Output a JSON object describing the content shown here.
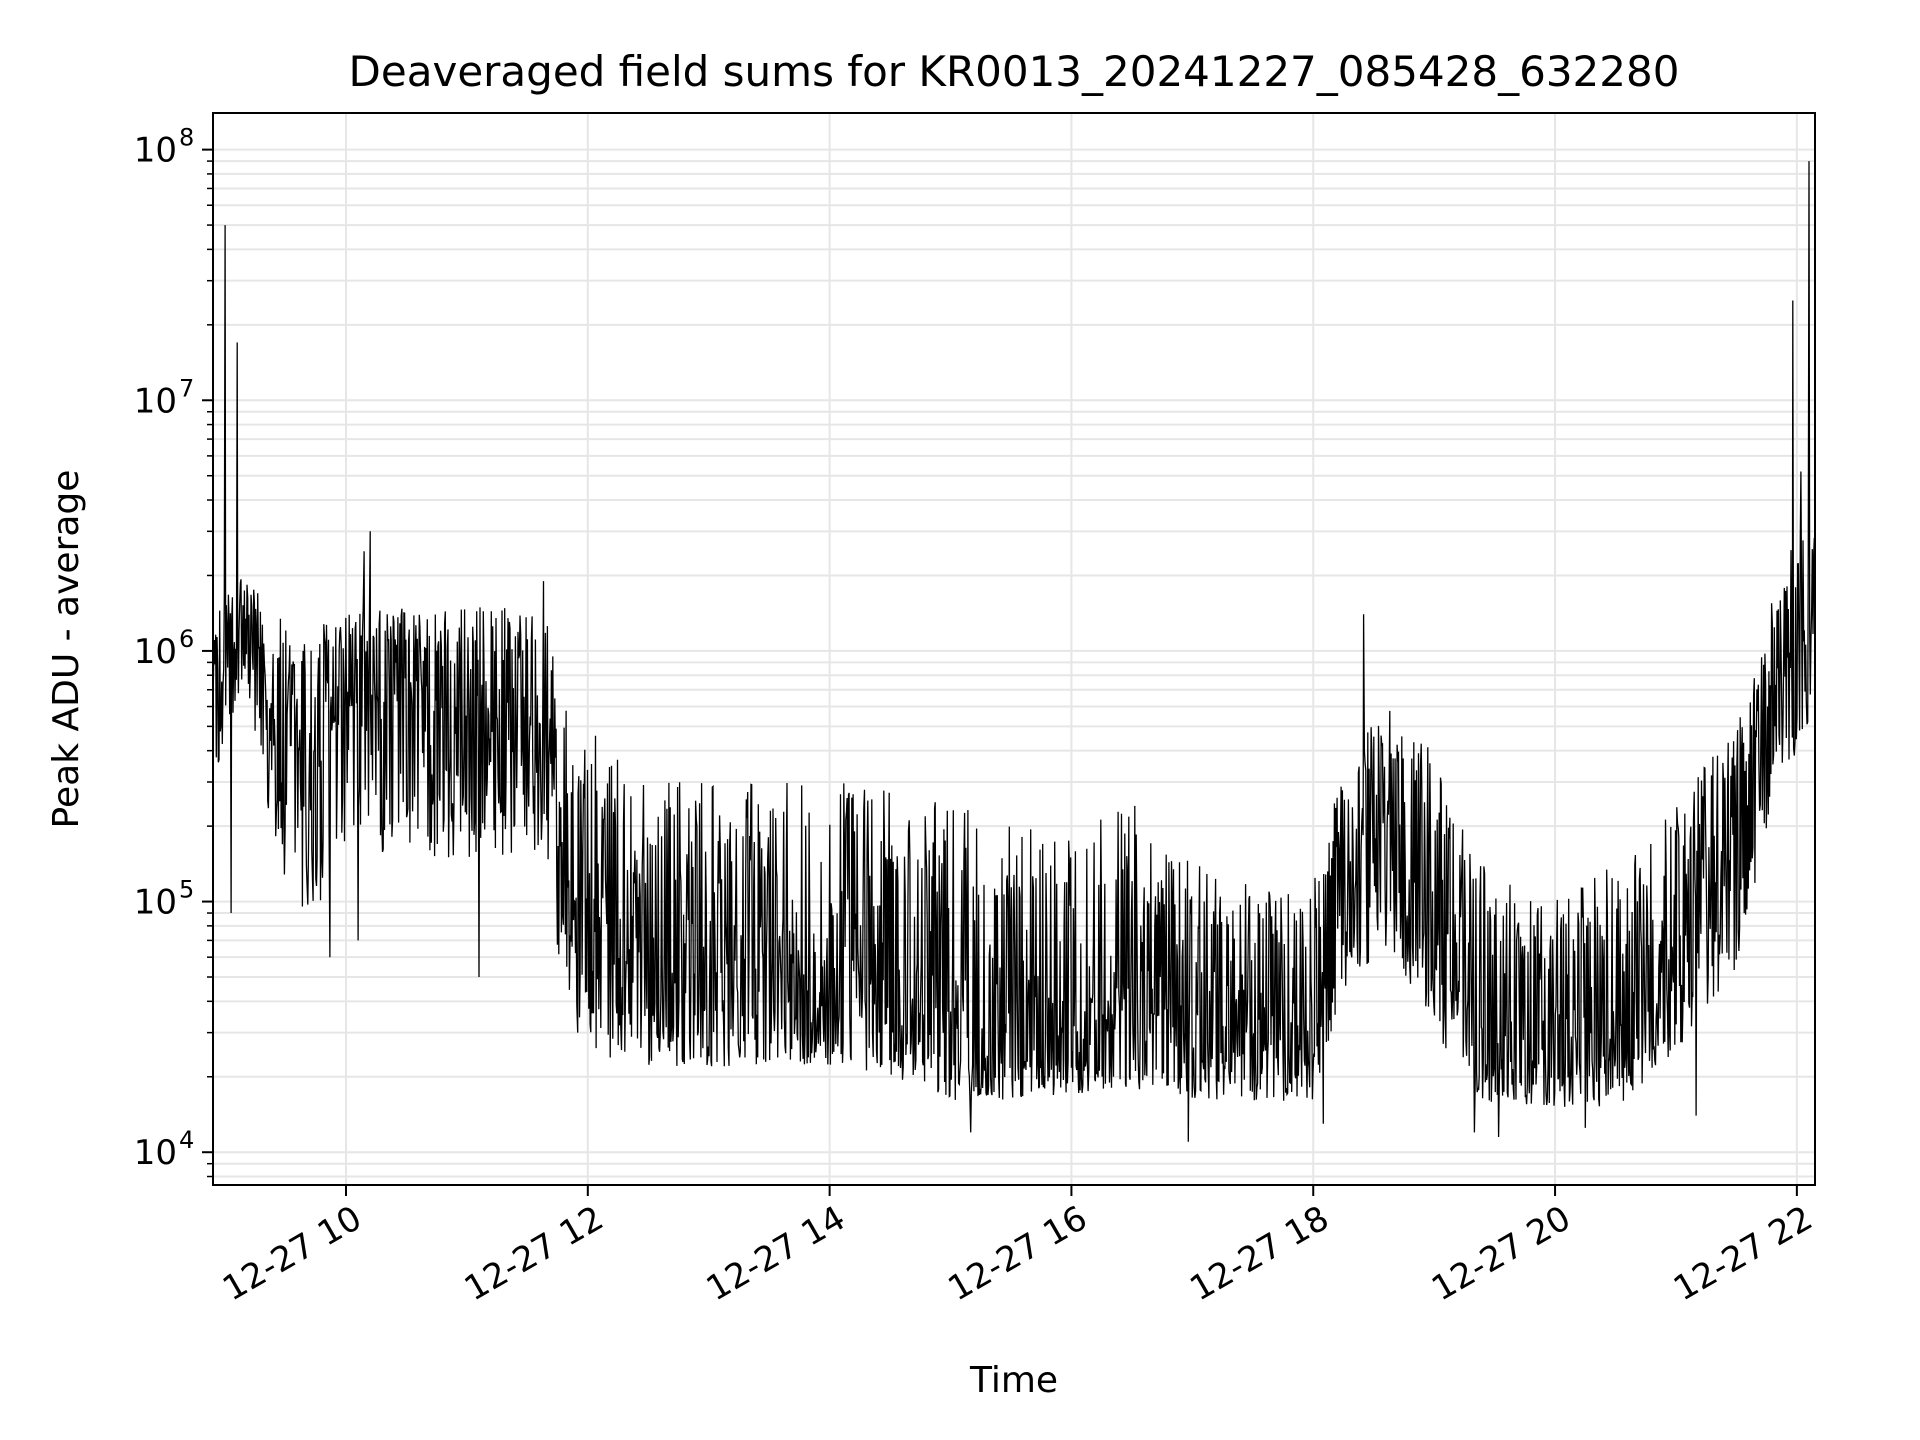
{
  "chart_data": {
    "type": "line",
    "title": "Deaveraged field sums for KR0013_20241227_085428_632280",
    "xlabel": "Time",
    "ylabel": "Peak ADU - average",
    "x_axis": {
      "kind": "time",
      "range": [
        "2024-12-27 08:54",
        "2024-12-27 22:09"
      ],
      "ticks": [
        {
          "time": "2024-12-27 10:00",
          "label": "12-27 10"
        },
        {
          "time": "2024-12-27 12:00",
          "label": "12-27 12"
        },
        {
          "time": "2024-12-27 14:00",
          "label": "12-27 14"
        },
        {
          "time": "2024-12-27 16:00",
          "label": "12-27 16"
        },
        {
          "time": "2024-12-27 18:00",
          "label": "12-27 18"
        },
        {
          "time": "2024-12-27 20:00",
          "label": "12-27 20"
        },
        {
          "time": "2024-12-27 22:00",
          "label": "12-27 22"
        }
      ]
    },
    "y_axis": {
      "scale": "log",
      "range": [
        7400,
        140000000
      ],
      "ticks": [
        {
          "value": 10000,
          "base": "10",
          "exp": "4"
        },
        {
          "value": 100000,
          "base": "10",
          "exp": "5"
        },
        {
          "value": 1000000,
          "base": "10",
          "exp": "6"
        },
        {
          "value": 10000000,
          "base": "10",
          "exp": "7"
        },
        {
          "value": 100000000,
          "base": "10",
          "exp": "8"
        }
      ]
    },
    "grid": true,
    "series": [
      {
        "color": "#000000",
        "envelope": [
          {
            "time": "2024-12-27 08:54",
            "mid": 600000,
            "low": 300000,
            "high": 1500000
          },
          {
            "time": "2024-12-27 09:10",
            "mid": 1200000,
            "low": 800000,
            "high": 2200000
          },
          {
            "time": "2024-12-27 09:25",
            "mid": 500000,
            "low": 150000,
            "high": 1400000
          },
          {
            "time": "2024-12-27 09:40",
            "mid": 350000,
            "low": 80000,
            "high": 1300000
          },
          {
            "time": "2024-12-27 10:00",
            "mid": 600000,
            "low": 150000,
            "high": 1500000
          },
          {
            "time": "2024-12-27 10:30",
            "mid": 600000,
            "low": 150000,
            "high": 1500000
          },
          {
            "time": "2024-12-27 11:00",
            "mid": 550000,
            "low": 150000,
            "high": 1500000
          },
          {
            "time": "2024-12-27 11:40",
            "mid": 500000,
            "low": 150000,
            "high": 1500000
          },
          {
            "time": "2024-12-27 11:48",
            "mid": 120000,
            "low": 40000,
            "high": 600000
          },
          {
            "time": "2024-12-27 12:00",
            "mid": 80000,
            "low": 25000,
            "high": 500000
          },
          {
            "time": "2024-12-27 12:30",
            "mid": 45000,
            "low": 22000,
            "high": 300000
          },
          {
            "time": "2024-12-27 13:00",
            "mid": 50000,
            "low": 22000,
            "high": 300000
          },
          {
            "time": "2024-12-27 13:30",
            "mid": 60000,
            "low": 22000,
            "high": 300000
          },
          {
            "time": "2024-12-27 14:00",
            "mid": 50000,
            "low": 22000,
            "high": 300000
          },
          {
            "time": "2024-12-27 14:30",
            "mid": 45000,
            "low": 20000,
            "high": 300000
          },
          {
            "time": "2024-12-27 15:00",
            "mid": 35000,
            "low": 16000,
            "high": 250000
          },
          {
            "time": "2024-12-27 15:30",
            "mid": 28000,
            "low": 16000,
            "high": 200000
          },
          {
            "time": "2024-12-27 16:00",
            "mid": 30000,
            "low": 17000,
            "high": 200000
          },
          {
            "time": "2024-12-27 16:30",
            "mid": 40000,
            "low": 18000,
            "high": 250000
          },
          {
            "time": "2024-12-27 17:00",
            "mid": 28000,
            "low": 16000,
            "high": 150000
          },
          {
            "time": "2024-12-27 17:30",
            "mid": 26000,
            "low": 16000,
            "high": 120000
          },
          {
            "time": "2024-12-27 18:00",
            "mid": 27000,
            "low": 16000,
            "high": 120000
          },
          {
            "time": "2024-12-27 18:20",
            "mid": 150000,
            "low": 50000,
            "high": 500000
          },
          {
            "time": "2024-12-27 18:40",
            "mid": 200000,
            "low": 60000,
            "high": 600000
          },
          {
            "time": "2024-12-27 19:00",
            "mid": 100000,
            "low": 30000,
            "high": 400000
          },
          {
            "time": "2024-12-27 19:20",
            "mid": 28000,
            "low": 16000,
            "high": 150000
          },
          {
            "time": "2024-12-27 20:00",
            "mid": 25000,
            "low": 15000,
            "high": 100000
          },
          {
            "time": "2024-12-27 20:30",
            "mid": 28000,
            "low": 15000,
            "high": 150000
          },
          {
            "time": "2024-12-27 21:00",
            "mid": 60000,
            "low": 25000,
            "high": 250000
          },
          {
            "time": "2024-12-27 21:30",
            "mid": 150000,
            "low": 50000,
            "high": 500000
          },
          {
            "time": "2024-12-27 21:50",
            "mid": 700000,
            "low": 300000,
            "high": 2000000
          },
          {
            "time": "2024-12-27 22:09",
            "mid": 1200000,
            "low": 500000,
            "high": 4000000
          }
        ],
        "peaks": [
          {
            "time": "2024-12-27 09:00",
            "value": 50000000
          },
          {
            "time": "2024-12-27 09:06",
            "value": 17000000
          },
          {
            "time": "2024-12-27 10:09",
            "value": 2500000
          },
          {
            "time": "2024-12-27 10:12",
            "value": 3000000
          },
          {
            "time": "2024-12-27 11:38",
            "value": 1900000
          },
          {
            "time": "2024-12-27 18:25",
            "value": 1400000
          },
          {
            "time": "2024-12-27 21:58",
            "value": 25000000
          },
          {
            "time": "2024-12-27 22:02",
            "value": 5200000
          },
          {
            "time": "2024-12-27 22:06",
            "value": 90000000
          }
        ],
        "troughs": [
          {
            "time": "2024-12-27 09:03",
            "value": 90000
          },
          {
            "time": "2024-12-27 09:52",
            "value": 60000
          },
          {
            "time": "2024-12-27 10:06",
            "value": 70000
          },
          {
            "time": "2024-12-27 11:06",
            "value": 50000
          },
          {
            "time": "2024-12-27 11:55",
            "value": 30000
          },
          {
            "time": "2024-12-27 15:10",
            "value": 12000
          },
          {
            "time": "2024-12-27 16:58",
            "value": 11000
          },
          {
            "time": "2024-12-27 18:05",
            "value": 13000
          },
          {
            "time": "2024-12-27 19:20",
            "value": 12000
          },
          {
            "time": "2024-12-27 19:32",
            "value": 11500
          },
          {
            "time": "2024-12-27 20:15",
            "value": 12500
          },
          {
            "time": "2024-12-27 21:10",
            "value": 14000
          }
        ]
      }
    ]
  }
}
